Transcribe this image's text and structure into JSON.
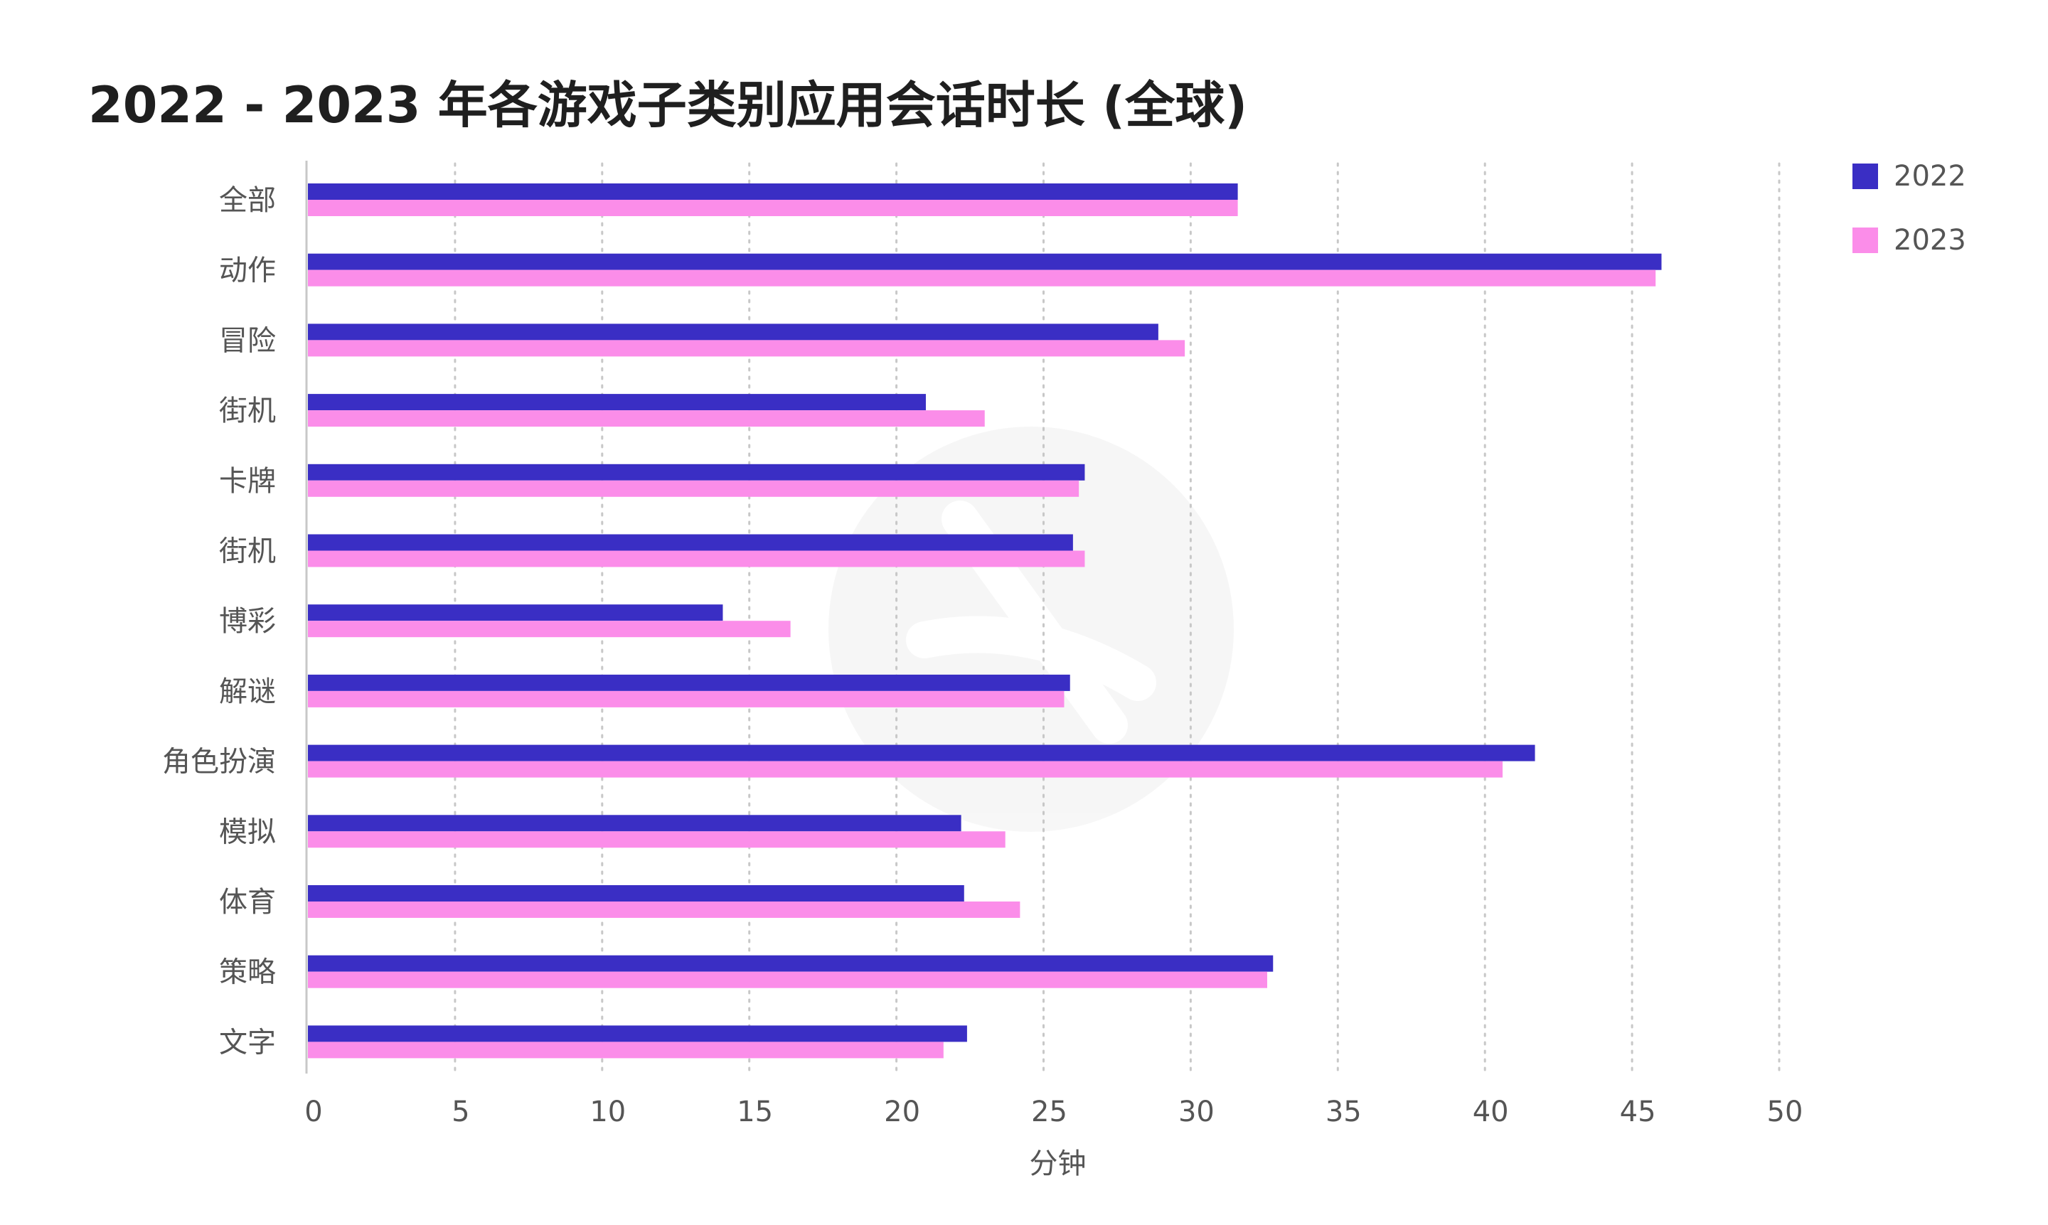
{
  "title": "2022 - 2023 年各游戏子类别应用会话时长 (全球)",
  "chart_data": {
    "type": "bar",
    "orientation": "horizontal",
    "title": "2022 - 2023 年各游戏子类别应用会话时长 (全球)",
    "xlabel": "分钟",
    "ylabel": "",
    "xlim": [
      0,
      50
    ],
    "xticks": [
      "0",
      "5",
      "10",
      "15",
      "20",
      "25",
      "30",
      "35",
      "40",
      "45",
      "50"
    ],
    "grid": "vertical dotted",
    "legend_position": "top-right",
    "categories": [
      "全部",
      "动作",
      "冒险",
      "街机",
      "卡牌",
      "街机",
      "博彩",
      "解谜",
      "角色扮演",
      "模拟",
      "体育",
      "策略",
      "文字"
    ],
    "series": [
      {
        "name": "2022",
        "color": "#3a2ec4",
        "values": [
          31.6,
          46.0,
          28.9,
          21.0,
          26.4,
          26.0,
          14.1,
          25.9,
          41.7,
          22.2,
          22.3,
          32.8,
          22.4
        ]
      },
      {
        "name": "2023",
        "color": "#fb8de9",
        "values": [
          31.6,
          45.8,
          29.8,
          23.0,
          26.2,
          26.4,
          16.4,
          25.7,
          40.6,
          23.7,
          24.2,
          32.6,
          21.6
        ]
      }
    ]
  }
}
